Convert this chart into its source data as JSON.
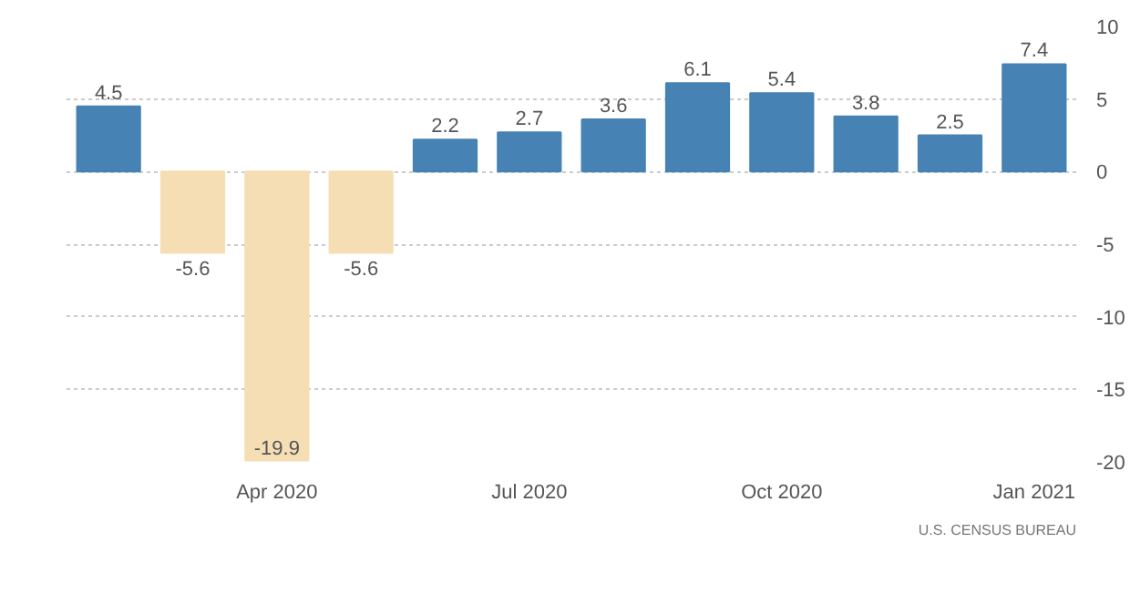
{
  "chart_data": {
    "type": "bar",
    "categories": [
      null,
      null,
      "Apr 2020",
      null,
      null,
      "Jul 2020",
      null,
      null,
      "Oct 2020",
      null,
      null,
      "Jan 2021"
    ],
    "values": [
      4.5,
      -5.6,
      -19.9,
      -5.6,
      2.2,
      2.7,
      3.6,
      6.1,
      5.4,
      3.8,
      2.5,
      7.4
    ],
    "colors": [
      "#4682b4",
      "#f5deb3",
      "#f5deb3",
      "#f5deb3",
      "#4682b4",
      "#4682b4",
      "#4682b4",
      "#4682b4",
      "#4682b4",
      "#4682b4",
      "#4682b4",
      "#4682b4"
    ],
    "ylim": [
      -20,
      10
    ],
    "yticks": [
      -20,
      -15,
      -10,
      -5,
      0,
      5,
      10
    ],
    "grid": "y",
    "data_labels": true,
    "annotations": [
      "U.S. CENSUS BUREAU"
    ]
  }
}
